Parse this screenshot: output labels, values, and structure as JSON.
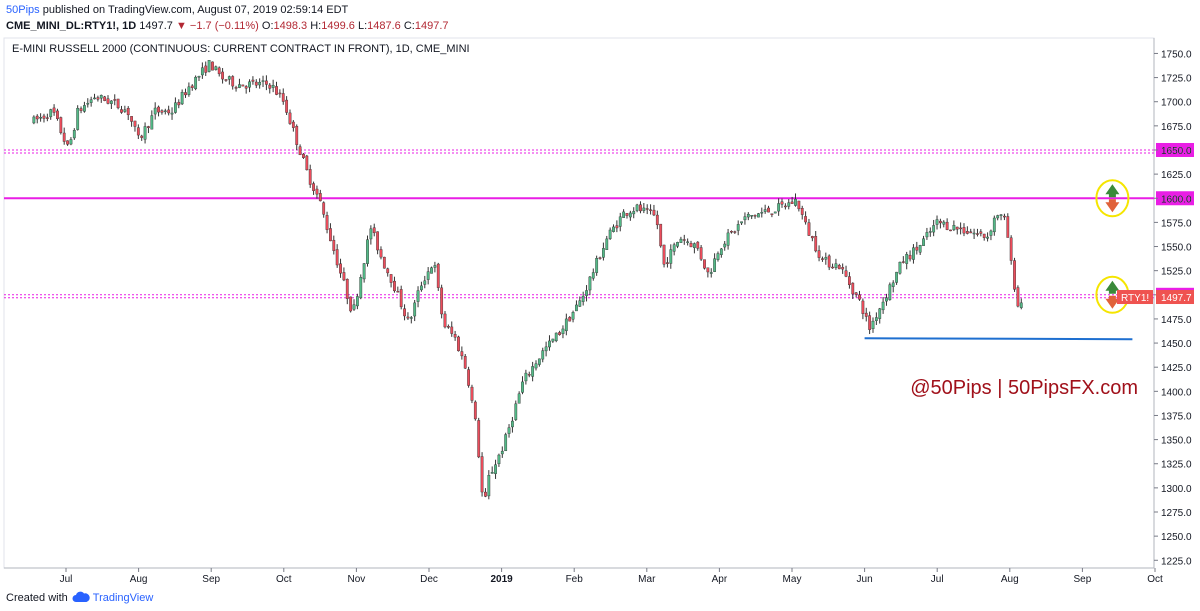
{
  "header": {
    "author": "50Pips",
    "published_text": "published on TradingView.com, August 07, 2019 02:59:14 EDT",
    "symbol": "CME_MINI_DL:RTY1!, 1D",
    "last": "1497.7",
    "change_arrow": "▼",
    "change": "−1.7 (−0.11%)",
    "o_label": "O:",
    "o_value": "1498.3",
    "h_label": "H:",
    "h_value": "1499.6",
    "l_label": "L:",
    "l_value": "1487.6",
    "c_label": "C:",
    "c_value": "1497.7"
  },
  "footer": {
    "created_with": "Created with",
    "brand": "TradingView",
    "logo_icon": "tradingview-cloud-icon"
  },
  "chart_data": {
    "type": "candlestick",
    "title": "E-MINI RUSSELL 2000 (CONTINUOUS: CURRENT CONTRACT IN FRONT), 1D, CME_MINI",
    "watermark": "@50Pips | 50PipsFX.com",
    "x_tick_labels": [
      "Jul",
      "Aug",
      "Sep",
      "Oct",
      "Nov",
      "Dec",
      "2019",
      "Feb",
      "Mar",
      "Apr",
      "May",
      "Jun",
      "Jul",
      "Aug",
      "Sep",
      "Oct"
    ],
    "y_ticks": [
      1225,
      1250,
      1275,
      1300,
      1325,
      1350,
      1375,
      1400,
      1425,
      1450,
      1475,
      1500,
      1525,
      1550,
      1575,
      1600,
      1625,
      1650,
      1675,
      1700,
      1725,
      1750
    ],
    "ylim": [
      1217,
      1766
    ],
    "grid": false,
    "price_axis": "right",
    "current_price": {
      "symbol": "RTY1!",
      "value": 1497.7,
      "color": "#ef5350"
    },
    "horizontal_levels": [
      {
        "value": 1650.0,
        "style": "dotted",
        "color": "#e91ee5"
      },
      {
        "value": 1600.0,
        "style": "solid",
        "color": "#e91ee5"
      },
      {
        "value": 1500.0,
        "style": "dotted",
        "color": "#e91ee5"
      }
    ],
    "support_line": {
      "from_month": "Jun",
      "to_month": "Sep",
      "value": 1455,
      "color": "#1e6fd0"
    },
    "annotations": [
      {
        "type": "up-down-arrows-in-circle",
        "level": 1600.0,
        "colors": [
          "#3a8a3a",
          "#e0623a",
          "#f5e500"
        ]
      },
      {
        "type": "up-down-arrows-in-circle",
        "level": 1500.0,
        "colors": [
          "#3a8a3a",
          "#e0623a",
          "#f5e500"
        ]
      }
    ],
    "up_color": "#53b987",
    "down_color": "#eb4d5c",
    "price_path": [
      [
        "2018-06-18",
        1680
      ],
      [
        "2018-06-26",
        1690
      ],
      [
        "2018-07-02",
        1650
      ],
      [
        "2018-07-06",
        1690
      ],
      [
        "2018-07-13",
        1705
      ],
      [
        "2018-07-20",
        1700
      ],
      [
        "2018-07-27",
        1690
      ],
      [
        "2018-08-01",
        1660
      ],
      [
        "2018-08-08",
        1690
      ],
      [
        "2018-08-15",
        1690
      ],
      [
        "2018-08-22",
        1715
      ],
      [
        "2018-08-31",
        1740
      ],
      [
        "2018-09-05",
        1725
      ],
      [
        "2018-09-12",
        1718
      ],
      [
        "2018-09-19",
        1718
      ],
      [
        "2018-09-26",
        1718
      ],
      [
        "2018-10-01",
        1700
      ],
      [
        "2018-10-05",
        1670
      ],
      [
        "2018-10-11",
        1625
      ],
      [
        "2018-10-16",
        1598
      ],
      [
        "2018-10-18",
        1580
      ],
      [
        "2018-10-24",
        1530
      ],
      [
        "2018-10-30",
        1480
      ],
      [
        "2018-11-07",
        1570
      ],
      [
        "2018-11-12",
        1535
      ],
      [
        "2018-11-16",
        1515
      ],
      [
        "2018-11-23",
        1470
      ],
      [
        "2018-11-28",
        1510
      ],
      [
        "2018-12-03",
        1535
      ],
      [
        "2018-12-07",
        1470
      ],
      [
        "2018-12-12",
        1455
      ],
      [
        "2018-12-17",
        1420
      ],
      [
        "2018-12-21",
        1360
      ],
      [
        "2018-12-24",
        1275
      ],
      [
        "2018-12-26",
        1310
      ],
      [
        "2019-01-02",
        1345
      ],
      [
        "2019-01-10",
        1410
      ],
      [
        "2019-01-18",
        1440
      ],
      [
        "2019-01-25",
        1460
      ],
      [
        "2019-02-04",
        1495
      ],
      [
        "2019-02-15",
        1560
      ],
      [
        "2019-02-22",
        1585
      ],
      [
        "2019-02-27",
        1590
      ],
      [
        "2019-03-05",
        1580
      ],
      [
        "2019-03-08",
        1530
      ],
      [
        "2019-03-15",
        1560
      ],
      [
        "2019-03-22",
        1550
      ],
      [
        "2019-03-27",
        1520
      ],
      [
        "2019-04-01",
        1550
      ],
      [
        "2019-04-12",
        1580
      ],
      [
        "2019-04-19",
        1585
      ],
      [
        "2019-04-26",
        1590
      ],
      [
        "2019-05-03",
        1598
      ],
      [
        "2019-05-07",
        1570
      ],
      [
        "2019-05-14",
        1535
      ],
      [
        "2019-05-21",
        1530
      ],
      [
        "2019-05-30",
        1490
      ],
      [
        "2019-06-03",
        1465
      ],
      [
        "2019-06-10",
        1500
      ],
      [
        "2019-06-17",
        1535
      ],
      [
        "2019-06-24",
        1550
      ],
      [
        "2019-07-01",
        1575
      ],
      [
        "2019-07-08",
        1570
      ],
      [
        "2019-07-15",
        1565
      ],
      [
        "2019-07-22",
        1560
      ],
      [
        "2019-07-26",
        1585
      ],
      [
        "2019-07-30",
        1575
      ],
      [
        "2019-08-01",
        1540
      ],
      [
        "2019-08-05",
        1480
      ],
      [
        "2019-08-06",
        1495
      ],
      [
        "2019-08-07",
        1497.7
      ]
    ]
  }
}
